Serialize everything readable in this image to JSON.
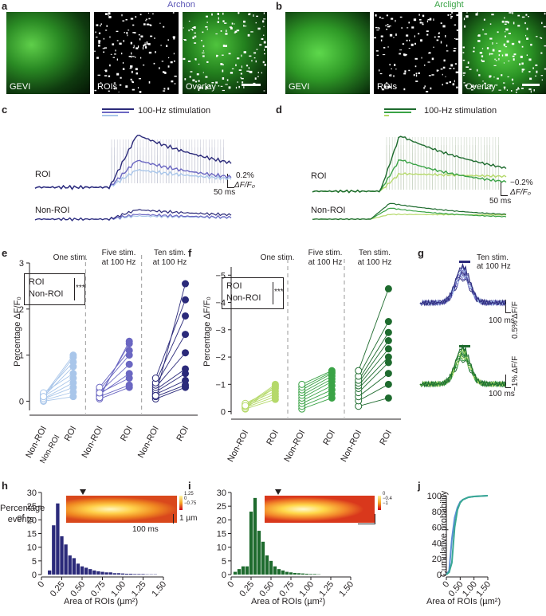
{
  "panels": {
    "a": "a",
    "b": "b",
    "c": "c",
    "d": "d",
    "e": "e",
    "f": "f",
    "g": "g",
    "h": "h",
    "i": "i",
    "j": "j"
  },
  "titles": {
    "archon": "Archon",
    "arclight": "Arclight"
  },
  "image_labels": {
    "gevi": "GEVI",
    "rois": "ROIs",
    "overlay": "Overlay"
  },
  "colors": {
    "archon_dark": "#2b2a7a",
    "archon_mid": "#6b67c2",
    "archon_light": "#a9c6ea",
    "arclight_dark": "#1e6b2e",
    "arclight_mid": "#3aa346",
    "arclight_light": "#b5d96a",
    "gevi_green": "#3fbf3a"
  },
  "traces": {
    "stimulation": "100-Hz stimulation",
    "roi": "ROI",
    "non_roi": "Non-ROI",
    "c_scale_pct": "0.2%",
    "c_scale_unit": "ΔF/F₀",
    "c_scale_time": "50 ms",
    "d_scale_pct": "−0.2%",
    "d_scale_unit": "ΔF/F₀",
    "d_scale_time": "50 ms"
  },
  "scatter": {
    "conditions": [
      "One stim.",
      "Five stim.\nat 100 Hz",
      "Ten stim.\nat 100 Hz"
    ],
    "cond_one": "One stim.",
    "cond_five_1": "Five stim.",
    "cond_five_2": "at 100 Hz",
    "cond_ten_1": "Ten stim.",
    "cond_ten_2": "at 100 Hz",
    "ylabel": "Percentage ΔF/F₀",
    "x_non_roi": "Non-ROI",
    "x_roi": "ROI",
    "legend_roi": "ROI",
    "legend_non_roi": "Non-ROI",
    "sig": "***",
    "e_yticks": [
      "0",
      "1",
      "2",
      "3"
    ],
    "f_yticks": [
      "0",
      "−1",
      "−2",
      "−3",
      "−4",
      "−5"
    ]
  },
  "panel_g": {
    "title1": "Ten stim.",
    "title2": "at 100 Hz",
    "scale_top": "0.5% ΔF/F",
    "scale_bottom": "−1% ΔF/F",
    "time_top": "100 ms",
    "time_bottom": "100 ms"
  },
  "histograms": {
    "ylabel_1": "Percentage of",
    "ylabel_2": "events",
    "xlabel": "Area of ROIs (µm²)",
    "xticks": [
      "0",
      "0.25",
      "0.50",
      "0.75",
      "1.00",
      "1.25",
      "1.50"
    ],
    "yticks": [
      "0",
      "5",
      "10",
      "15",
      "20",
      "25",
      "30"
    ],
    "colorbar_h": [
      "1.25",
      "0",
      "−0.75"
    ],
    "colorbar_i": [
      "0",
      "−0.4",
      "−1"
    ],
    "inset_scale_um": "1 µm",
    "inset_scale_ms": "100 ms"
  },
  "panel_j": {
    "ylabel": "Cumulative probability",
    "xlabel": "Area of ROIs (µm²)",
    "yticks": [
      "0",
      "20",
      "40",
      "60",
      "80",
      "100"
    ],
    "xticks": [
      "0",
      "0.50",
      "1.00",
      "1.50"
    ]
  },
  "chart_data": [
    {
      "type": "scatter",
      "panel": "e",
      "title": "",
      "ylabel": "Percentage ΔF/F₀",
      "ylim": [
        -0.2,
        3
      ],
      "groups": [
        {
          "name": "One stim.",
          "non_roi": [
            0.0,
            0.05,
            0.1,
            0.15,
            0.12,
            0.08,
            0.02,
            0.18,
            0.06,
            0.1
          ],
          "roi": [
            0.1,
            0.3,
            0.5,
            0.85,
            1.0,
            0.95,
            0.2,
            0.6,
            0.4,
            0.75
          ]
        },
        {
          "name": "Five stim. at 100 Hz",
          "non_roi": [
            0.05,
            0.1,
            0.15,
            0.2,
            0.25,
            0.3,
            0.12,
            0.08,
            0.18
          ],
          "roi": [
            0.3,
            0.35,
            0.6,
            0.8,
            1.0,
            1.1,
            1.25,
            1.3,
            0.5
          ]
        },
        {
          "name": "Ten stim. at 100 Hz",
          "non_roi": [
            0.05,
            0.1,
            0.15,
            0.2,
            0.25,
            0.3,
            0.35,
            0.4,
            0.5,
            0.12
          ],
          "roi": [
            0.3,
            0.35,
            0.45,
            0.6,
            0.7,
            1.05,
            1.45,
            1.85,
            2.2,
            2.55
          ]
        }
      ]
    },
    {
      "type": "scatter",
      "panel": "f",
      "title": "",
      "ylabel": "Percentage ΔF/F₀",
      "ylim": [
        0.2,
        -5.2
      ],
      "groups": [
        {
          "name": "One stim.",
          "non_roi": [
            -0.1,
            -0.15,
            -0.2,
            -0.25,
            -0.3,
            -0.12,
            -0.18,
            -0.22
          ],
          "roi": [
            -0.45,
            -0.55,
            -0.65,
            -0.75,
            -0.85,
            -0.9,
            -0.95,
            -1.0
          ]
        },
        {
          "name": "Five stim. at 100 Hz",
          "non_roi": [
            -0.1,
            -0.2,
            -0.3,
            -0.4,
            -0.5,
            -0.6,
            -0.7,
            -0.8,
            -0.9,
            -1.0
          ],
          "roi": [
            -0.5,
            -0.65,
            -0.8,
            -0.95,
            -1.1,
            -1.2,
            -1.3,
            -1.4,
            -1.45,
            -1.5
          ]
        },
        {
          "name": "Ten stim. at 100 Hz",
          "non_roi": [
            -0.2,
            -0.4,
            -0.55,
            -0.7,
            -0.85,
            -0.95,
            -1.05,
            -1.15,
            -1.3,
            -1.5
          ],
          "roi": [
            -0.5,
            -1.0,
            -1.4,
            -1.8,
            -2.0,
            -2.3,
            -2.6,
            -2.9,
            -3.3,
            -4.5
          ]
        }
      ]
    },
    {
      "type": "bar",
      "panel": "h",
      "xlabel": "Area of ROIs (µm²)",
      "ylabel": "Percentage of events",
      "ylim": [
        0,
        30
      ],
      "xlim": [
        0,
        1.5
      ],
      "bin_centers": [
        0.1,
        0.15,
        0.2,
        0.25,
        0.3,
        0.35,
        0.4,
        0.45,
        0.5,
        0.55,
        0.6,
        0.65,
        0.7,
        0.75,
        0.8,
        0.85,
        0.9,
        0.95,
        1.0,
        1.05,
        1.1,
        1.15,
        1.2,
        1.25,
        1.3,
        1.35,
        1.4
      ],
      "values": [
        1.5,
        18,
        26,
        14,
        11,
        7,
        6,
        4,
        3,
        2.5,
        2,
        1.5,
        1.2,
        1,
        0.8,
        0.8,
        0.5,
        0.5,
        0.4,
        0.3,
        0.3,
        0.2,
        0.2,
        0.2,
        0.1,
        0.1,
        0.1
      ]
    },
    {
      "type": "bar",
      "panel": "i",
      "xlabel": "Area of ROIs (µm²)",
      "ylim": [
        0,
        30
      ],
      "xlim": [
        0,
        1.5
      ],
      "bin_centers": [
        0.05,
        0.1,
        0.15,
        0.2,
        0.25,
        0.3,
        0.35,
        0.4,
        0.45,
        0.5,
        0.55,
        0.6,
        0.65,
        0.7,
        0.75,
        0.8,
        0.85,
        0.9,
        0.95,
        1.0,
        1.05,
        1.1
      ],
      "values": [
        1,
        2,
        3,
        3,
        23,
        28,
        16,
        12,
        7,
        5,
        3,
        2,
        1.5,
        1,
        0.8,
        0.6,
        0.5,
        0.4,
        0.3,
        0.2,
        0.2,
        0.1
      ]
    },
    {
      "type": "line",
      "panel": "j",
      "xlabel": "Area of ROIs (µm²)",
      "ylabel": "Cumulative probability",
      "ylim": [
        0,
        100
      ],
      "xlim": [
        0,
        1.5
      ],
      "series": [
        {
          "name": "Archon",
          "x": [
            0,
            0.1,
            0.2,
            0.3,
            0.4,
            0.5,
            0.6,
            0.8,
            1.0,
            1.5
          ],
          "y": [
            0,
            5,
            45,
            72,
            85,
            92,
            95,
            98,
            99,
            100
          ]
        },
        {
          "name": "Arclight",
          "x": [
            0,
            0.1,
            0.2,
            0.3,
            0.4,
            0.5,
            0.6,
            0.8,
            1.0,
            1.5
          ],
          "y": [
            0,
            3,
            15,
            60,
            82,
            91,
            95,
            98,
            99,
            100
          ]
        }
      ]
    }
  ]
}
